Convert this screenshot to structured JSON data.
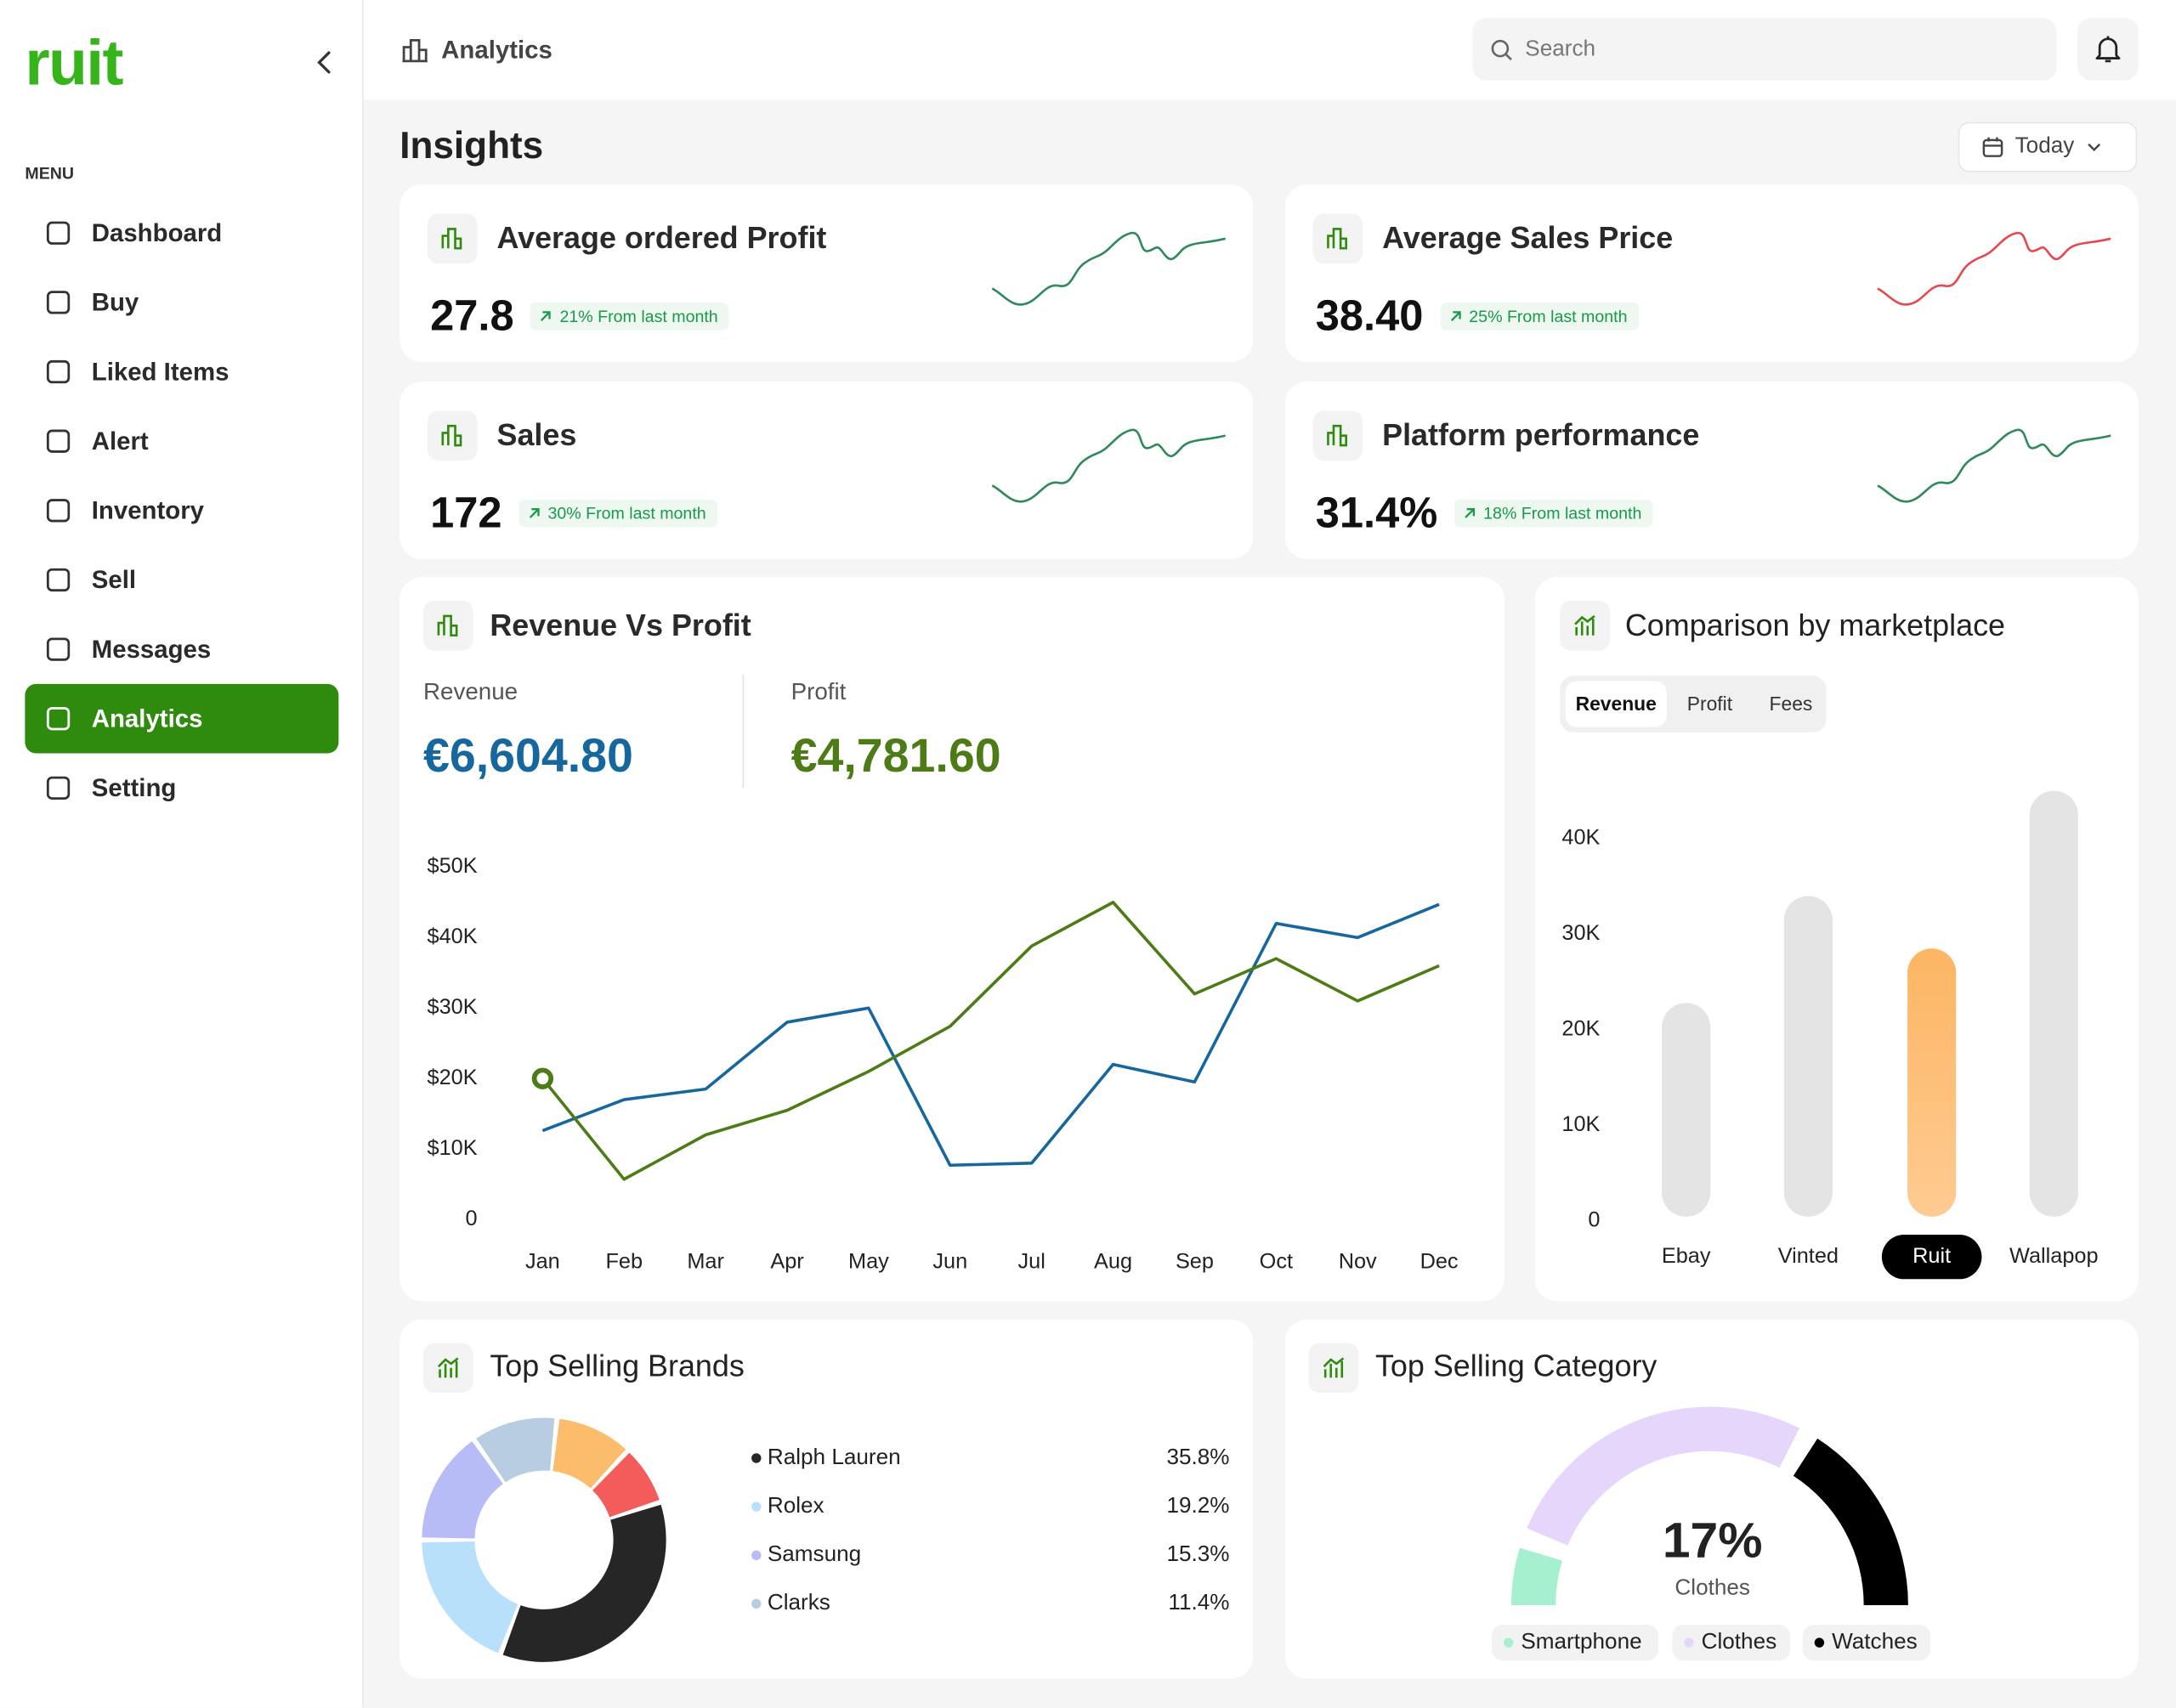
{
  "sidebar": {
    "brand": "ruit",
    "menu_label": "MENU",
    "items": [
      "Dashboard",
      "Buy",
      "Liked Items",
      "Alert",
      "Inventory",
      "Sell",
      "Messages",
      "Analytics",
      "Setting"
    ],
    "active": "Analytics"
  },
  "header": {
    "title": "Analytics",
    "search_placeholder": "Search"
  },
  "insights": {
    "title": "Insights",
    "date_filter": "Today",
    "cards": [
      {
        "title": "Average ordered Profit",
        "value": "27.8",
        "change": "21% From last month",
        "sparkline_color": "#2f8a5b"
      },
      {
        "title": "Average Sales Price",
        "value": "38.40",
        "change": "25% From last month",
        "sparkline_color": "#e5484d"
      },
      {
        "title": "Sales",
        "value": "172",
        "change": "30% From last month",
        "sparkline_color": "#2f8a5b"
      },
      {
        "title": "Platform performance",
        "value": "31.4%",
        "change": "18% From last month",
        "sparkline_color": "#2f8a5b"
      }
    ]
  },
  "revenue_vs_profit": {
    "title": "Revenue Vs Profit",
    "revenue": "€6,604.80",
    "profit": "€4,781.60",
    "chart": {
      "type": "line",
      "categories": [
        "Jan",
        "Feb",
        "Mar",
        "Apr",
        "May",
        "Jun",
        "Jul",
        "Aug",
        "Sep",
        "Oct",
        "Nov",
        "Dec"
      ],
      "series": [
        {
          "name": "Revenue",
          "color": "#17679f",
          "values": [
            12600,
            17000,
            18500,
            28000,
            30000,
            7700,
            8000,
            22000,
            19500,
            42000,
            40000,
            44700
          ]
        },
        {
          "name": "Profit",
          "color": "#4d7c16",
          "values": [
            20000,
            5700,
            12000,
            15500,
            21000,
            27400,
            38800,
            45000,
            32000,
            37000,
            31000,
            36000
          ]
        }
      ],
      "ylim": [
        0,
        50000
      ],
      "yticks": [
        0,
        {
          "value": 10000,
          "label": "$10K"
        },
        {
          "value": 20000,
          "label": "$20K"
        },
        {
          "value": 30000,
          "label": "$30K"
        },
        {
          "value": 40000,
          "label": "$40K"
        },
        {
          "value": 50000,
          "label": "$50K"
        }
      ]
    }
  },
  "marketplace": {
    "title": "Comparison by marketplace",
    "tabs": [
      "Revenue",
      "Profit",
      "Fees"
    ],
    "active_tab": "Revenue",
    "chart": {
      "type": "bar",
      "categories": [
        "Ebay",
        "Vinted",
        "Ruit",
        "Wallapop"
      ],
      "values": [
        22800,
        34000,
        28500,
        45000
      ],
      "color": "#e4e4e4",
      "selected": "Ruit",
      "selected_color": "#fdb563",
      "ylim": [
        0,
        45000
      ],
      "yticks": [
        0,
        {
          "value": 10000,
          "label": "10K"
        },
        {
          "value": 20000,
          "label": "20K"
        },
        {
          "value": 30000,
          "label": "30K"
        },
        {
          "value": 40000,
          "label": "40K"
        }
      ]
    }
  },
  "top_brands": {
    "title": "Top Selling Brands",
    "chart": {
      "type": "donut",
      "categories": [
        "Ralph Lauren",
        "Rolex",
        "Samsung",
        "Clarks",
        null,
        null
      ],
      "values": [
        35.8,
        19.2,
        15.3,
        11.4,
        10.3,
        8
      ],
      "value_labels": [
        "35.8%",
        "19.2%",
        "15.3%",
        "11.4%",
        null,
        null
      ],
      "colors": [
        "#262626",
        "#b9e0fb",
        "#b7bcf7",
        "#b9cde2",
        "#fbbd6b",
        "#f45b5b"
      ]
    }
  },
  "top_category": {
    "title": "Top Selling Category",
    "value": 17,
    "value_label": "17%",
    "label": "Clothes",
    "chart": {
      "type": "gauge",
      "categories": [
        "Smartphone",
        "Clothes",
        "Watches"
      ],
      "values": [
        10,
        56,
        34
      ],
      "colors": [
        "#a6f0cf",
        "#e6d6fb",
        "#000000"
      ]
    }
  }
}
